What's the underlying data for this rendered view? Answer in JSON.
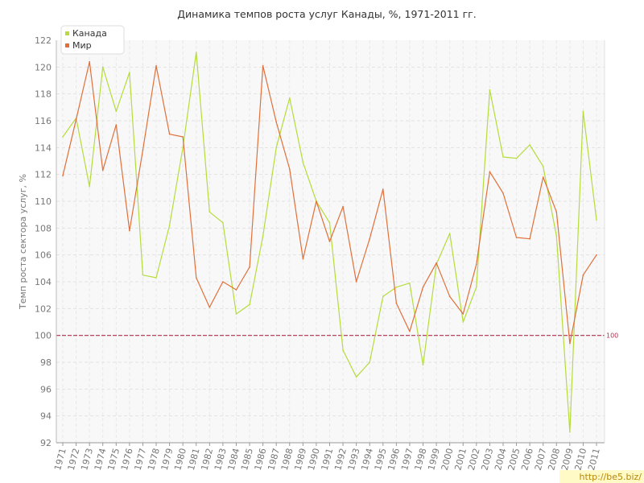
{
  "chart_data": {
    "type": "line",
    "title": "Динамика темпов роста услуг Канады, %, 1971-2011 гг.",
    "xlabel": "",
    "ylabel": "Темп роста сектора услуг, %",
    "ylim": [
      92,
      122
    ],
    "yticks": [
      92,
      94,
      96,
      98,
      100,
      102,
      104,
      106,
      108,
      110,
      112,
      114,
      116,
      118,
      120,
      122
    ],
    "grid": true,
    "legend_position": "top-left",
    "x": [
      "1971",
      "1972",
      "1973",
      "1974",
      "1975",
      "1976",
      "1977",
      "1978",
      "1979",
      "1980",
      "1981",
      "1982",
      "1983",
      "1984",
      "1985",
      "1986",
      "1987",
      "1988",
      "1989",
      "1990",
      "1991",
      "1992",
      "1993",
      "1994",
      "1995",
      "1996",
      "1997",
      "1998",
      "1999",
      "2000",
      "2001",
      "2002",
      "2003",
      "2004",
      "2005",
      "2006",
      "2007",
      "2008",
      "2009",
      "2010",
      "2011"
    ],
    "series": [
      {
        "name": "Канада",
        "color": "#b5dc3c",
        "values": [
          114.8,
          116.2,
          111.1,
          120.0,
          116.7,
          119.6,
          104.5,
          104.3,
          108.2,
          114.0,
          121.1,
          109.2,
          108.4,
          101.6,
          102.3,
          107.4,
          114.0,
          117.7,
          112.9,
          110.0,
          108.4,
          98.9,
          96.9,
          98.0,
          102.9,
          103.6,
          103.9,
          97.8,
          105.3,
          107.6,
          101.0,
          103.6,
          118.3,
          113.3,
          113.2,
          114.2,
          112.6,
          107.4,
          92.8,
          116.7,
          108.6
        ]
      },
      {
        "name": "Мир",
        "color": "#e0703a",
        "values": [
          111.9,
          116.1,
          120.4,
          112.3,
          115.7,
          107.8,
          113.8,
          120.1,
          115.0,
          114.8,
          104.3,
          102.1,
          104.0,
          103.4,
          105.1,
          120.1,
          115.9,
          112.4,
          105.7,
          110.0,
          107.0,
          109.6,
          104.0,
          107.2,
          110.9,
          102.4,
          100.3,
          103.6,
          105.4,
          102.9,
          101.6,
          105.3,
          112.2,
          110.6,
          107.3,
          107.2,
          111.8,
          109.2,
          99.4,
          104.5,
          106.0
        ]
      }
    ],
    "reference_line": {
      "value": 100,
      "label": "100",
      "color": "#b03050"
    }
  },
  "watermark": {
    "text": "http://be5.biz/"
  }
}
